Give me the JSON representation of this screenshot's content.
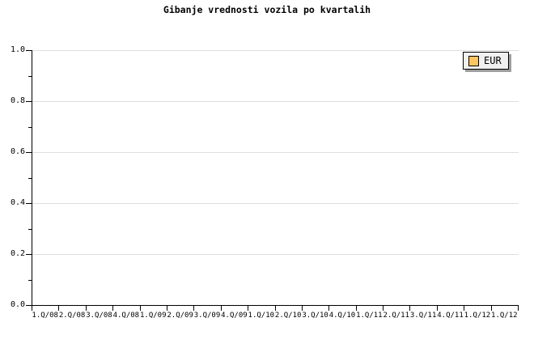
{
  "colors": {
    "background": "#ffffff",
    "axis": "#000000",
    "text": "#000000",
    "grid": "#dedede",
    "legend_bg": "#f0f0f0",
    "legend_border": "#000000",
    "legend_shadow": "#9e9e9e",
    "swatch": "#fdc663",
    "swatch_border": "#000000"
  },
  "chart_data": {
    "type": "line",
    "title": "Gibanje vrednosti vozila po kvartalih",
    "xlabel": "",
    "ylabel": "",
    "ylim": [
      0.0,
      1.0
    ],
    "y_major_ticks": [
      0.0,
      0.2,
      0.4,
      0.6,
      0.8,
      1.0
    ],
    "y_tick_labels": [
      "0.0",
      "0.2",
      "0.4",
      "0.6",
      "0.8",
      "1.0"
    ],
    "y_minor_tick_step": 0.1,
    "x_tick_labels": [
      "1.Q/08",
      "2.Q/08",
      "3.Q/08",
      "4.Q/08",
      "1.Q/09",
      "2.Q/09",
      "3.Q/09",
      "4.Q/09",
      "1.Q/10",
      "2.Q/10",
      "3.Q/10",
      "4.Q/10",
      "1.Q/11",
      "2.Q/11",
      "3.Q/11",
      "4.Q/11",
      "1.Q/12",
      "1.Q/12"
    ],
    "grid": "horizontal-only",
    "legend": {
      "position": "top-right",
      "entries": [
        {
          "label": "EUR",
          "color": "#fdc663"
        }
      ]
    },
    "series": [
      {
        "name": "EUR",
        "values": []
      }
    ]
  }
}
